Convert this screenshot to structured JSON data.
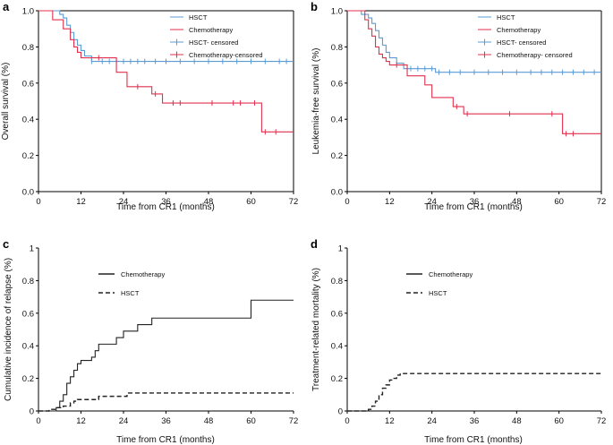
{
  "colors": {
    "hsct": "#5b9bd5",
    "chemo": "#e0304e",
    "black": "#222222"
  },
  "chart_data": [
    {
      "panel": "a",
      "type": "line",
      "step": true,
      "xlabel": "Time from CR1 (months)",
      "ylabel": "Overall survival (%)",
      "xlim": [
        0,
        72
      ],
      "ylim": [
        0,
        1
      ],
      "xticks": [
        "0",
        "12",
        "24",
        "36",
        "48",
        "60",
        "72"
      ],
      "yticks": [
        "0.0",
        "0.2",
        "0.4",
        "0.6",
        "0.8",
        "1.0"
      ],
      "legend": [
        "HSCT",
        "Chemotherapy",
        "HSCT- censored",
        "Chemotherapy-censored"
      ],
      "series": [
        {
          "name": "HSCT",
          "color": "hsct",
          "x": [
            0,
            6,
            7,
            8,
            9,
            10,
            11,
            12,
            13,
            15,
            72
          ],
          "y": [
            1.0,
            0.98,
            0.96,
            0.92,
            0.88,
            0.84,
            0.81,
            0.78,
            0.75,
            0.72,
            0.72
          ],
          "censored": [
            15,
            18,
            20,
            22,
            24,
            26,
            28,
            30,
            33,
            36,
            40,
            44,
            48,
            52,
            56,
            60,
            64,
            68,
            70
          ]
        },
        {
          "name": "Chemotherapy",
          "color": "chemo",
          "x": [
            0,
            4,
            7,
            9,
            10,
            11,
            12,
            13,
            22,
            25,
            32,
            35,
            62,
            63,
            72
          ],
          "y": [
            1.0,
            0.95,
            0.9,
            0.84,
            0.8,
            0.77,
            0.74,
            0.74,
            0.66,
            0.58,
            0.54,
            0.49,
            0.49,
            0.33,
            0.33
          ],
          "censored": [
            17,
            28,
            33,
            38,
            40,
            49,
            55,
            57,
            61,
            64,
            67
          ]
        }
      ]
    },
    {
      "panel": "b",
      "type": "line",
      "step": true,
      "xlabel": "Time from CR1 (months)",
      "ylabel": "Leukemia-free survival (%)",
      "xlim": [
        0,
        72
      ],
      "ylim": [
        0,
        1
      ],
      "xticks": [
        "0",
        "12",
        "24",
        "36",
        "48",
        "60",
        "72"
      ],
      "yticks": [
        "0.0",
        "0.2",
        "0.4",
        "0.6",
        "0.8",
        "1.0"
      ],
      "legend": [
        "HSCT",
        "Chemotherapy",
        "HSCT- censored",
        "Chemotherapy- censored"
      ],
      "series": [
        {
          "name": "HSCT",
          "color": "hsct",
          "x": [
            0,
            4,
            6,
            7,
            8,
            9,
            10,
            11,
            12,
            14,
            16,
            18,
            24,
            25,
            72
          ],
          "y": [
            1.0,
            0.98,
            0.96,
            0.93,
            0.89,
            0.85,
            0.81,
            0.77,
            0.74,
            0.71,
            0.68,
            0.68,
            0.68,
            0.66,
            0.66
          ],
          "censored": [
            18,
            20,
            22,
            24,
            26,
            29,
            32,
            36,
            40,
            44,
            48,
            52,
            55,
            58,
            61,
            64,
            67,
            70
          ]
        },
        {
          "name": "Chemotherapy",
          "color": "chemo",
          "x": [
            0,
            5,
            6,
            7,
            8,
            9,
            10,
            11,
            12,
            17,
            22,
            24,
            25,
            30,
            33,
            34,
            60,
            61,
            72
          ],
          "y": [
            1.0,
            0.95,
            0.9,
            0.86,
            0.8,
            0.76,
            0.74,
            0.72,
            0.7,
            0.64,
            0.59,
            0.52,
            0.52,
            0.47,
            0.43,
            0.43,
            0.43,
            0.32,
            0.32
          ],
          "censored": [
            14,
            31,
            34,
            46,
            58,
            62,
            64
          ]
        }
      ]
    },
    {
      "panel": "c",
      "type": "line",
      "step": true,
      "xlabel": "Time from CR1 (months)",
      "ylabel": "Cumulative incidence of relapse (%)",
      "xlim": [
        0,
        72
      ],
      "ylim": [
        0,
        1
      ],
      "xticks": [
        "0",
        "12",
        "24",
        "36",
        "48",
        "60",
        "72"
      ],
      "yticks": [
        "0",
        "0.2",
        "0.4",
        "0.6",
        "0.8",
        "1"
      ],
      "legend": [
        "Chemotherapy",
        "HSCT"
      ],
      "series": [
        {
          "name": "Chemotherapy",
          "color": "black",
          "dash": false,
          "x": [
            0,
            5,
            6,
            7,
            8,
            9,
            10,
            11,
            12,
            15,
            16,
            17,
            18,
            22,
            24,
            25,
            28,
            30,
            32,
            60,
            72
          ],
          "y": [
            0,
            0.02,
            0.06,
            0.1,
            0.17,
            0.21,
            0.25,
            0.29,
            0.31,
            0.33,
            0.37,
            0.41,
            0.41,
            0.45,
            0.49,
            0.49,
            0.53,
            0.53,
            0.57,
            0.68,
            0.68
          ]
        },
        {
          "name": "HSCT",
          "color": "black",
          "dash": true,
          "x": [
            0,
            3,
            5,
            7,
            9,
            10,
            11,
            17,
            25,
            72
          ],
          "y": [
            0,
            0.01,
            0.02,
            0.03,
            0.05,
            0.06,
            0.07,
            0.09,
            0.11,
            0.11
          ]
        }
      ]
    },
    {
      "panel": "d",
      "type": "line",
      "step": true,
      "xlabel": "Time from CR1 (months)",
      "ylabel": "Treatment-related mortality (%)",
      "xlim": [
        0,
        72
      ],
      "ylim": [
        0,
        1
      ],
      "xticks": [
        "0",
        "12",
        "24",
        "36",
        "48",
        "60",
        "72"
      ],
      "yticks": [
        "0",
        "0.2",
        "0.4",
        "0.6",
        "0.8",
        "1"
      ],
      "legend": [
        "Chemotherapy",
        "HSCT"
      ],
      "series": [
        {
          "name": "HSCT",
          "color": "black",
          "dash": true,
          "x": [
            0,
            6,
            7,
            8,
            9,
            10,
            11,
            12,
            13,
            14,
            15,
            72
          ],
          "y": [
            0,
            0.01,
            0.03,
            0.06,
            0.1,
            0.14,
            0.16,
            0.19,
            0.2,
            0.22,
            0.23,
            0.23
          ]
        }
      ]
    }
  ]
}
